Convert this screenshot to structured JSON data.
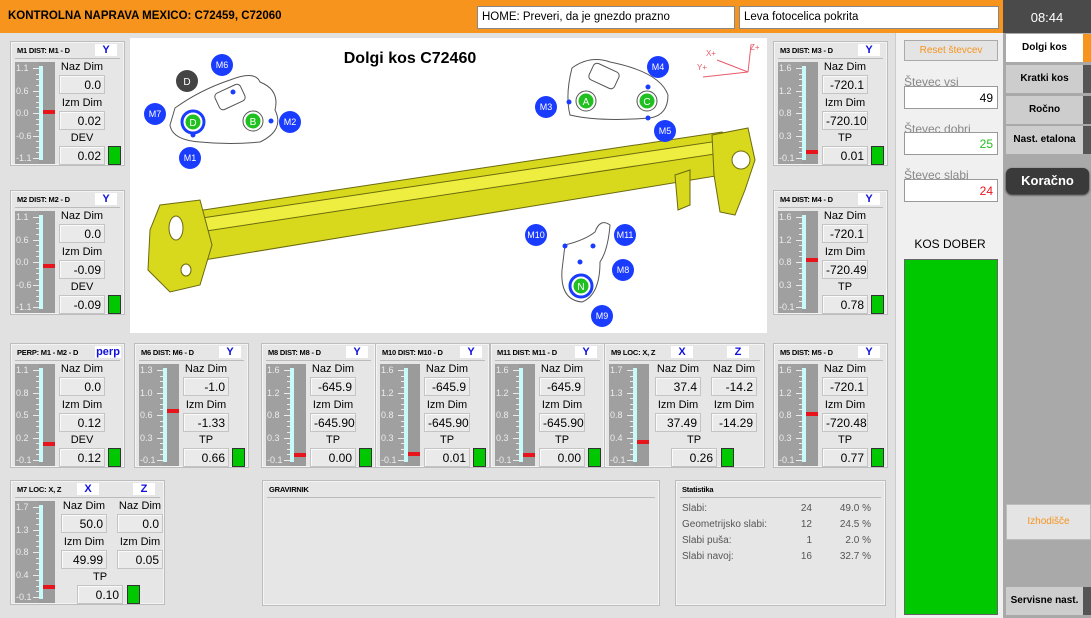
{
  "header": {
    "title": "KONTROLNA NAPRAVA MEXICO: C72459, C72060",
    "status_1": "HOME: Preveri, da je gnezdo prazno",
    "status_2": "Leva fotocelica pokrita",
    "time": "08:44"
  },
  "colors": {
    "accent": "#f7941d",
    "ok": "#00c800",
    "marker": "#e8141c",
    "axis_label": "#1010e0"
  },
  "panels": [
    {
      "id": "M1",
      "title": "M1 DIST: M1 - D",
      "axis": "Y",
      "ticks": [
        "1.1",
        "0.6",
        "0.0",
        "-0.6",
        "-1.1"
      ],
      "marker": 0.02,
      "naz_label": "Naz Dim",
      "naz": "0.0",
      "izm_label": "Izm Dim",
      "izm": "0.02",
      "dev_label": "DEV",
      "dev": "0.02"
    },
    {
      "id": "M2",
      "title": "M2 DIST: M2 - D",
      "axis": "Y",
      "ticks": [
        "1.1",
        "0.6",
        "0.0",
        "-0.6",
        "-1.1"
      ],
      "marker": -0.09,
      "naz_label": "Naz Dim",
      "naz": "0.0",
      "izm_label": "Izm Dim",
      "izm": "-0.09",
      "dev_label": "DEV",
      "dev": "-0.09"
    },
    {
      "id": "M3",
      "title": "M3 DIST: M3 - D",
      "axis": "Y",
      "ticks": [
        "1.6",
        "1.2",
        "0.8",
        "0.3",
        "-0.1"
      ],
      "marker": 0.01,
      "naz_label": "Naz Dim",
      "naz": "-720.1",
      "izm_label": "Izm Dim",
      "izm": "-720.10",
      "dev_label": "TP",
      "dev": "0.01"
    },
    {
      "id": "M4",
      "title": "M4 DIST: M4 - D",
      "axis": "Y",
      "ticks": [
        "1.6",
        "1.2",
        "0.8",
        "0.3",
        "-0.1"
      ],
      "marker": 0.78,
      "naz_label": "Naz Dim",
      "naz": "-720.1",
      "izm_label": "Izm Dim",
      "izm": "-720.49",
      "dev_label": "TP",
      "dev": "0.78"
    },
    {
      "id": "PERP",
      "title": "PERP: M1 - M2 - D",
      "axis": "perp",
      "ticks": [
        "1.1",
        "0.8",
        "0.5",
        "0.2",
        "-0.1"
      ],
      "marker": 0.12,
      "naz_label": "Naz Dim",
      "naz": "0.0",
      "izm_label": "Izm Dim",
      "izm": "0.12",
      "dev_label": "DEV",
      "dev": "0.12"
    },
    {
      "id": "M6",
      "title": "M6 DIST: M6 - D",
      "axis": "Y",
      "ticks": [
        "1.3",
        "1.0",
        "0.6",
        "0.3",
        "-0.1"
      ],
      "marker": 0.66,
      "naz_label": "Naz Dim",
      "naz": "-1.0",
      "izm_label": "Izm Dim",
      "izm": "-1.33",
      "dev_label": "TP",
      "dev": "0.66"
    },
    {
      "id": "M8",
      "title": "M8 DIST: M8 - D",
      "axis": "Y",
      "ticks": [
        "1.6",
        "1.2",
        "0.8",
        "0.3",
        "-0.1"
      ],
      "marker": 0.0,
      "naz_label": "Naz Dim",
      "naz": "-645.9",
      "izm_label": "Izm Dim",
      "izm": "-645.90",
      "dev_label": "TP",
      "dev": "0.00"
    },
    {
      "id": "M10",
      "title": "M10 DIST: M10 - D",
      "axis": "Y",
      "ticks": [
        "1.6",
        "1.2",
        "0.8",
        "0.3",
        "-0.1"
      ],
      "marker": 0.01,
      "naz_label": "Naz Dim",
      "naz": "-645.9",
      "izm_label": "Izm Dim",
      "izm": "-645.90",
      "dev_label": "TP",
      "dev": "0.01"
    },
    {
      "id": "M11",
      "title": "M11 DIST: M11 - D",
      "axis": "Y",
      "ticks": [
        "1.6",
        "1.2",
        "0.8",
        "0.3",
        "-0.1"
      ],
      "marker": 0.0,
      "naz_label": "Naz Dim",
      "naz": "-645.9",
      "izm_label": "Izm Dim",
      "izm": "-645.90",
      "dev_label": "TP",
      "dev": "0.00"
    },
    {
      "id": "M5",
      "title": "M5 DIST: M5 - D",
      "axis": "Y",
      "ticks": [
        "1.6",
        "1.2",
        "0.8",
        "0.3",
        "-0.1"
      ],
      "marker": 0.77,
      "naz_label": "Naz Dim",
      "naz": "-720.1",
      "izm_label": "Izm Dim",
      "izm": "-720.48",
      "dev_label": "TP",
      "dev": "0.77"
    }
  ],
  "loc_panels": [
    {
      "id": "M9",
      "title": "M9 LOC: X, Z",
      "axis_x": "X",
      "axis_z": "Z",
      "ticks": [
        "1.7",
        "1.3",
        "0.8",
        "0.4",
        "-0.1"
      ],
      "marker": 0.26,
      "naz_label": "Naz Dim",
      "izm_label": "Izm Dim",
      "naz_x": "37.4",
      "naz_z": "-14.2",
      "izm_x": "37.49",
      "izm_z": "-14.29",
      "tp_label": "TP",
      "tp": "0.26"
    },
    {
      "id": "M7",
      "title": "M7 LOC: X, Z",
      "axis_x": "X",
      "axis_z": "Z",
      "ticks": [
        "1.7",
        "1.3",
        "0.8",
        "0.4",
        "-0.1"
      ],
      "marker": 0.1,
      "naz_label": "Naz Dim",
      "izm_label": "Izm Dim",
      "naz_x": "50.0",
      "naz_z": "0.0",
      "izm_x": "49.99",
      "izm_z": "0.05",
      "tp_label": "TP",
      "tp": "0.10"
    }
  ],
  "diagram": {
    "title": "Dolgi kos C72460",
    "markers": [
      "M1",
      "M2",
      "M3",
      "M4",
      "M5",
      "M6",
      "M7",
      "M8",
      "M9",
      "M10",
      "M11"
    ],
    "datums": [
      "A",
      "B",
      "C",
      "D",
      "N"
    ],
    "ref_datum": "D",
    "axes": [
      "X+",
      "Y+",
      "Z+"
    ]
  },
  "gravirnik": {
    "title": "GRAVIRNIK"
  },
  "statistika": {
    "title": "Statistika",
    "rows": [
      {
        "label": "Slabi:",
        "count": "24",
        "pct": "49.0 %"
      },
      {
        "label": "Geometrijsko slabi:",
        "count": "12",
        "pct": "24.5 %"
      },
      {
        "label": "Slabi puša:",
        "count": "1",
        "pct": "2.0 %"
      },
      {
        "label": "Slabi navoj:",
        "count": "16",
        "pct": "32.7 %"
      }
    ]
  },
  "counters": {
    "reset_label": "Reset števcev",
    "all_label": "Števec vsi",
    "all": "49",
    "good_label": "Števec dobri",
    "good": "25",
    "bad_label": "Števec slabi",
    "bad": "24",
    "result": "KOS DOBER"
  },
  "sidebar": {
    "tabs": [
      "Dolgi kos",
      "Kratki kos",
      "Ročno",
      "Nast. etalona"
    ],
    "step_button": "Koračno",
    "home_button": "Izhodišče",
    "service_button": "Servisne nast."
  }
}
